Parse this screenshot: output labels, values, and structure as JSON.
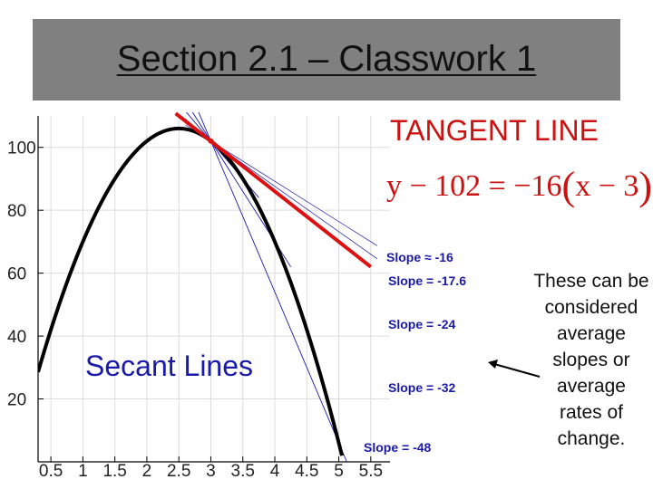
{
  "slide": {
    "title": "Section 2.1 – Classwork 1",
    "tangent_heading": "TANGENT LINE",
    "equation": {
      "lhs": "y − 102 = −16",
      "open": "(",
      "inner": "x − 3",
      "close": ")"
    },
    "secant_heading": "Secant Lines",
    "note": "These can be considered average slopes or average rates of change."
  },
  "colors": {
    "curve": "#000000",
    "tangent": "#dd1111",
    "secant": "#1a1aaa",
    "title_bar": "#808080",
    "grid": "#dcdcdc",
    "arrow": "#000000"
  },
  "chart_data": {
    "type": "line",
    "x_ticks": [
      "0.5",
      "1",
      "1.5",
      "2",
      "2.5",
      "3",
      "3.5",
      "4",
      "4.5",
      "5",
      "5.5"
    ],
    "y_ticks": [
      "20",
      "40",
      "60",
      "80",
      "100"
    ],
    "xlim": [
      0.3,
      5.8
    ],
    "ylim": [
      0,
      110
    ],
    "grid": true,
    "curve": {
      "equation": "y = -16x^2 + 80x + 6",
      "x_start": 0.3,
      "x_end": 5.05
    },
    "tangent": {
      "point": [
        3,
        102
      ],
      "slope": -16,
      "x_range": [
        2.45,
        5.5
      ]
    },
    "secants": [
      {
        "label": "Slope = -17.6",
        "slope": -17.6,
        "x2": 3.1
      },
      {
        "label": "Slope = -24",
        "slope": -24,
        "x2": 3.5
      },
      {
        "label": "Slope = -32",
        "slope": -32,
        "x2": 4
      },
      {
        "label": "Slope = -48",
        "slope": -48,
        "x2": 5
      }
    ],
    "tangent_label": "Slope ≈ -16"
  }
}
